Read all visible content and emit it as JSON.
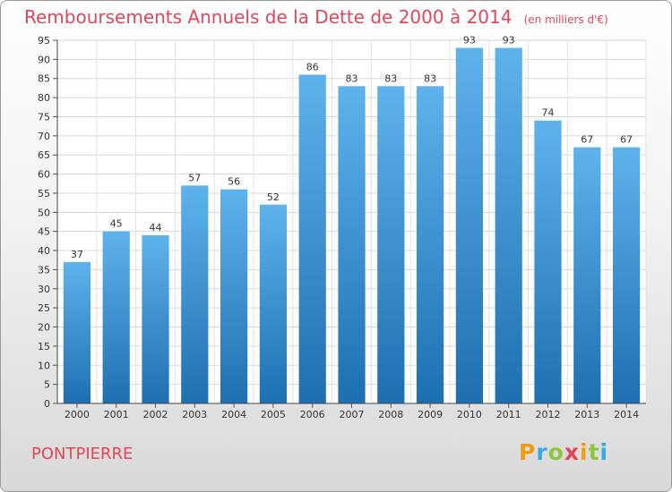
{
  "title": "Remboursements Annuels de la Dette de 2000 à 2014",
  "subtitle": "(en milliers d'€)",
  "commune": "PONTPIERRE",
  "logo": {
    "letters": [
      "P",
      "r",
      "o",
      "x",
      "i",
      "t",
      "i"
    ],
    "colors": [
      "#f39c12",
      "#3ba9e0",
      "#8cc63f",
      "#e2465a",
      "#f39c12",
      "#8cc63f",
      "#3ba9e0"
    ]
  },
  "colors": {
    "bar_top": "#5fb3ec",
    "bar_bottom": "#1e6fb0",
    "accent": "#e2465a"
  },
  "chart_data": {
    "type": "bar",
    "title": "Remboursements Annuels de la Dette de 2000 à 2014",
    "categories": [
      "2000",
      "2001",
      "2002",
      "2003",
      "2004",
      "2005",
      "2006",
      "2007",
      "2008",
      "2009",
      "2010",
      "2011",
      "2012",
      "2013",
      "2014"
    ],
    "values": [
      37,
      45,
      44,
      57,
      56,
      52,
      86,
      83,
      83,
      83,
      93,
      93,
      74,
      67,
      67
    ],
    "ylim": [
      0,
      95
    ],
    "yticks": [
      0,
      5,
      10,
      15,
      20,
      25,
      30,
      35,
      40,
      45,
      50,
      55,
      60,
      65,
      70,
      75,
      80,
      85,
      90,
      95
    ],
    "grid": true,
    "legend": "none"
  }
}
